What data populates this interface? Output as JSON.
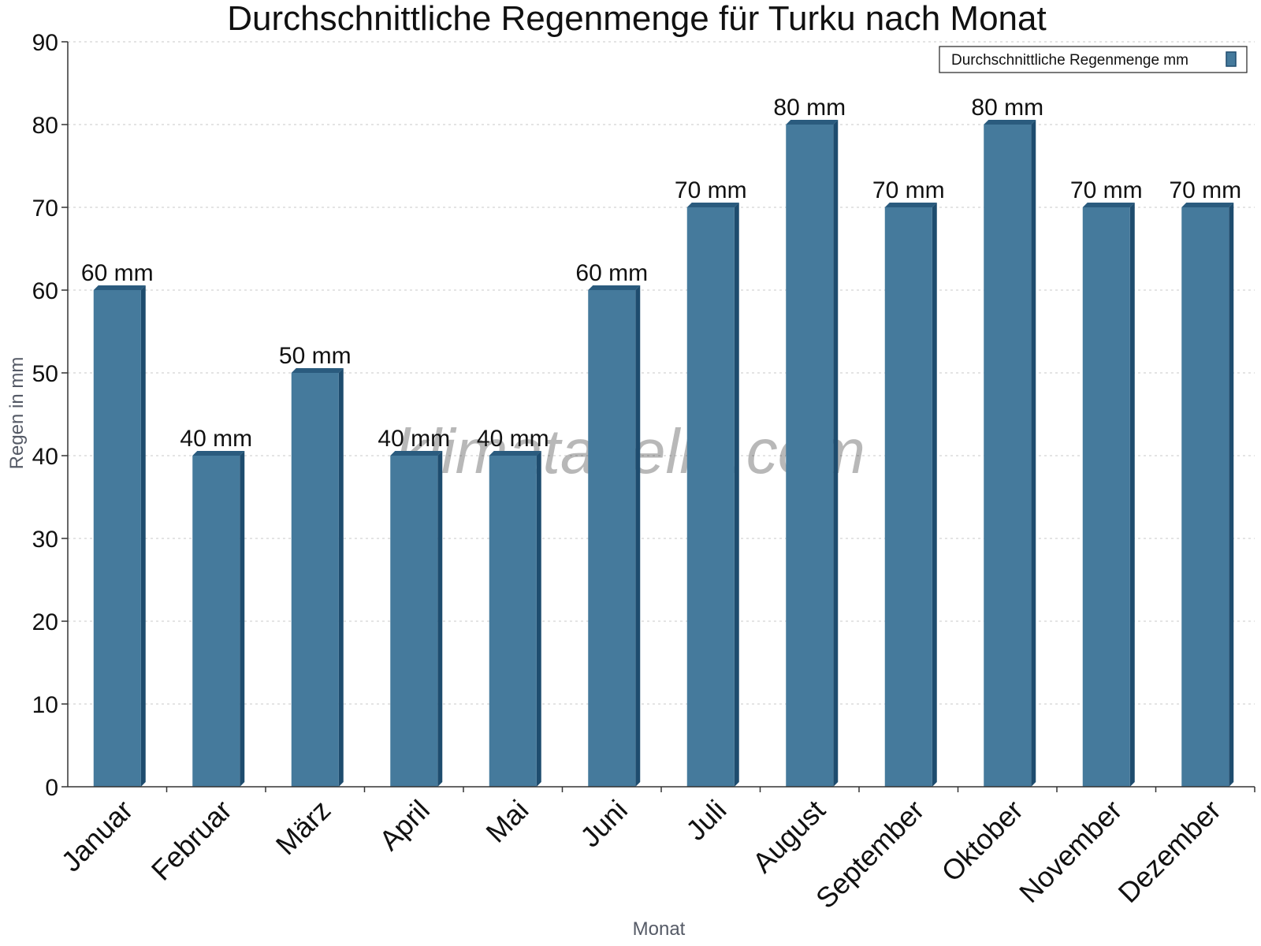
{
  "chart_data": {
    "type": "bar",
    "title": "Durchschnittliche Regenmenge für Turku nach Monat",
    "xlabel": "Monat",
    "ylabel": "Regen in mm",
    "categories": [
      "Januar",
      "Februar",
      "März",
      "April",
      "Mai",
      "Juni",
      "Juli",
      "August",
      "September",
      "Oktober",
      "November",
      "Dezember"
    ],
    "series": [
      {
        "name": "Durchschnittliche Regenmenge mm",
        "values": [
          60,
          40,
          50,
          40,
          40,
          60,
          70,
          80,
          70,
          80,
          70,
          70
        ],
        "value_labels": [
          "60 mm",
          "40 mm",
          "50 mm",
          "40 mm",
          "40 mm",
          "60 mm",
          "70 mm",
          "80 mm",
          "70 mm",
          "80 mm",
          "70 mm",
          "70 mm"
        ]
      }
    ],
    "ylim": [
      0,
      90
    ],
    "yticks": [
      0,
      10,
      20,
      30,
      40,
      50,
      60,
      70,
      80,
      90
    ],
    "grid": true,
    "legend_position": "top-right",
    "colors": {
      "bar": "#457a9c",
      "bar_side": "#1e4c6e",
      "bar_top": "#2a5b7e"
    }
  },
  "watermark": "klimatabelle.com"
}
